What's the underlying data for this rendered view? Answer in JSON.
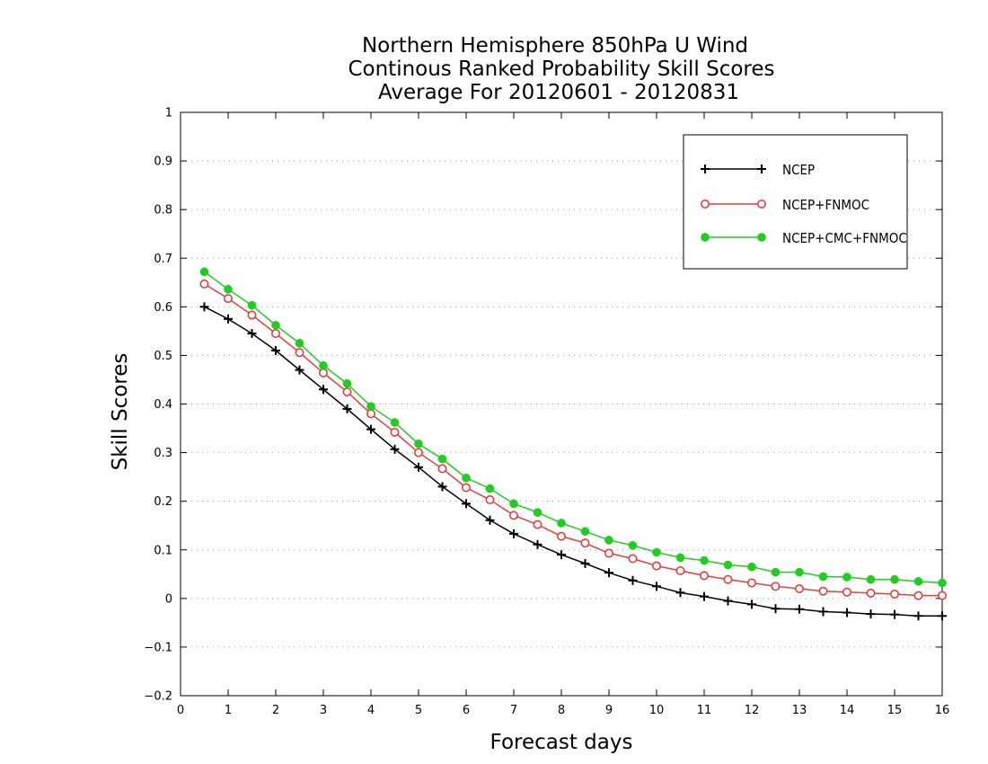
{
  "chart_data": {
    "type": "line",
    "title": [
      "Northern Hemisphere 850hPa U Wind",
      "Continous Ranked Probability Skill Scores",
      "Average For 20120601 - 20120831"
    ],
    "xlabel": "Forecast days",
    "ylabel": "Skill Scores",
    "xlim": [
      0,
      16
    ],
    "ylim": [
      -0.2,
      1
    ],
    "xticks": [
      "0",
      "1",
      "2",
      "3",
      "4",
      "5",
      "6",
      "7",
      "8",
      "9",
      "10",
      "11",
      "12",
      "13",
      "14",
      "15",
      "16"
    ],
    "yticks": [
      "−0.2",
      "−0.1",
      "0",
      "0.1",
      "0.2",
      "0.3",
      "0.4",
      "0.5",
      "0.6",
      "0.7",
      "0.8",
      "0.9",
      "1"
    ],
    "grid": "horizontal dotted",
    "legend_position": "top-right",
    "x": [
      0.5,
      1,
      1.5,
      2,
      2.5,
      3,
      3.5,
      4,
      4.5,
      5,
      5.5,
      6,
      6.5,
      7,
      7.5,
      8,
      8.5,
      9,
      9.5,
      10,
      10.5,
      11,
      11.5,
      12,
      12.5,
      13,
      13.5,
      14,
      14.5,
      15,
      15.5,
      16
    ],
    "series": [
      {
        "name": "NCEP",
        "color": "#000000",
        "marker": "plus",
        "values": [
          0.6,
          0.575,
          0.545,
          0.51,
          0.47,
          0.43,
          0.39,
          0.348,
          0.307,
          0.27,
          0.23,
          0.195,
          0.161,
          0.133,
          0.111,
          0.09,
          0.072,
          0.053,
          0.037,
          0.025,
          0.012,
          0.004,
          -0.005,
          -0.012,
          -0.021,
          -0.022,
          -0.027,
          -0.029,
          -0.032,
          -0.033,
          -0.036,
          -0.036
        ]
      },
      {
        "name": "NCEP+FNMOC",
        "color": "#e83c3c",
        "marker": "open-circle",
        "values": [
          0.647,
          0.617,
          0.583,
          0.545,
          0.506,
          0.464,
          0.425,
          0.38,
          0.342,
          0.3,
          0.267,
          0.228,
          0.203,
          0.171,
          0.152,
          0.128,
          0.114,
          0.093,
          0.082,
          0.067,
          0.057,
          0.047,
          0.039,
          0.032,
          0.025,
          0.02,
          0.015,
          0.013,
          0.011,
          0.009,
          0.006,
          0.006
        ]
      },
      {
        "name": "NCEP+CMC+FNMOC",
        "color": "#22cc22",
        "marker": "filled-circle",
        "values": [
          0.672,
          0.636,
          0.603,
          0.562,
          0.525,
          0.479,
          0.442,
          0.395,
          0.362,
          0.318,
          0.287,
          0.248,
          0.226,
          0.195,
          0.177,
          0.155,
          0.138,
          0.12,
          0.109,
          0.095,
          0.084,
          0.078,
          0.069,
          0.065,
          0.054,
          0.054,
          0.045,
          0.044,
          0.039,
          0.039,
          0.035,
          0.032
        ]
      }
    ]
  }
}
